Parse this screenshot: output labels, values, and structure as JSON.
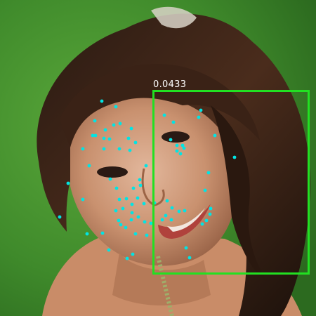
{
  "detection": {
    "score_label": "0.0433",
    "box_color": "#22e022",
    "score_color": "#ffffff"
  },
  "landmark_color": "#00e5e5"
}
